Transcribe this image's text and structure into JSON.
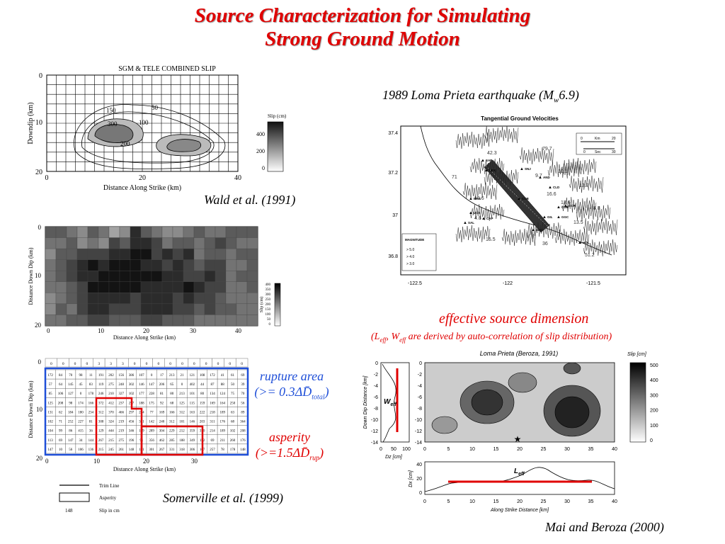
{
  "title_line1": "Source Characterization for Simulating",
  "title_line2": "Strong Ground Motion",
  "fig1": {
    "title": "SGM & TELE COMBINED SLIP",
    "ylabel": "Downdip (km)",
    "xlabel": "Distance Along Strike (km)",
    "xticks": [
      "0",
      "20",
      "40"
    ],
    "yticks": [
      "0",
      "10",
      "20"
    ],
    "contours": [
      "50",
      "150",
      "300",
      "100",
      "200"
    ],
    "colorbar_title": "Slip (cm)",
    "colorbar_ticks": [
      "400",
      "200",
      "0"
    ],
    "citation": "Wald et al. (1991)"
  },
  "fig2": {
    "ylabel": "Distance Down Dip (km)",
    "xlabel": "Distance Along Strike (km)",
    "xticks": [
      "0",
      "10",
      "20",
      "30",
      "40"
    ],
    "yticks": [
      "0",
      "10",
      "20"
    ],
    "colorbar_title": "Slip (cm)",
    "colorbar_ticks": [
      "400",
      "350",
      "300",
      "250",
      "200",
      "150",
      "100",
      "50",
      "0"
    ]
  },
  "fig3": {
    "ylabel": "Distance Down Dip (km)",
    "xlabel": "Distance Along Strike (km)",
    "xticks": [
      "0",
      "10",
      "20",
      "30"
    ],
    "yticks": [
      "0",
      "10",
      "20"
    ],
    "first_row": [
      "0",
      "0",
      "0",
      "0",
      "3",
      "3",
      "3",
      "0",
      "0",
      "0",
      "0",
      "0",
      "0",
      "0",
      "0",
      "0",
      "0"
    ],
    "rows": [
      [
        "172",
        "84",
        "70",
        "98",
        "11",
        "191",
        "202",
        "156",
        "386",
        "107",
        "0",
        "17",
        "213",
        "21",
        "121",
        "108",
        "172",
        "41",
        "61",
        "69"
      ],
      [
        "57",
        "64",
        "145",
        "45",
        "83",
        "119",
        "275",
        "248",
        "302",
        "146",
        "147",
        "206",
        "65",
        "0",
        "402",
        "44",
        "87",
        "88",
        "50",
        "39"
      ],
      [
        "85",
        "106",
        "127",
        "0",
        "178",
        "246",
        "210",
        "327",
        "102",
        "177",
        "228",
        "81",
        "80",
        "213",
        "101",
        "80",
        "134",
        "124",
        "75",
        "70"
      ],
      [
        "125",
        "208",
        "98",
        "174",
        "166",
        "372",
        "412",
        "237",
        "297",
        "188",
        "175",
        "92",
        "68",
        "125",
        "115",
        "159",
        "169",
        "164",
        "250",
        "56"
      ],
      [
        "131",
        "62",
        "184",
        "180",
        "234",
        "312",
        "370",
        "466",
        "297",
        "234",
        "77",
        "169",
        "166",
        "312",
        "163",
        "222",
        "218",
        "189",
        "63",
        "89"
      ],
      [
        "102",
        "71",
        "252",
        "227",
        "81",
        "308",
        "324",
        "219",
        "456",
        "321",
        "142",
        "240",
        "312",
        "101",
        "146",
        "203",
        "311",
        "176",
        "68",
        "364"
      ],
      [
        "104",
        "99",
        "86",
        "415",
        "36",
        "129",
        "444",
        "219",
        "346",
        "169",
        "289",
        "304",
        "229",
        "212",
        "359",
        "370",
        "214",
        "189",
        "102",
        "208"
      ],
      [
        "113",
        "69",
        "147",
        "34",
        "144",
        "267",
        "215",
        "275",
        "196",
        "91",
        "356",
        "462",
        "285",
        "188",
        "349",
        "152",
        "69",
        "211",
        "260",
        "176"
      ],
      [
        "147",
        "10",
        "56",
        "106",
        "136",
        "215",
        "245",
        "261",
        "148",
        "121",
        "301",
        "267",
        "331",
        "318",
        "306",
        "167",
        "257",
        "78",
        "178",
        "148"
      ]
    ],
    "legend_trim": "Trim Line",
    "legend_asperity": "Asperity",
    "legend_slip_value": "148",
    "legend_slip": "Slip in cm",
    "citation": "Somerville et al. (1999)"
  },
  "labels": {
    "rupture_area": "rupture area",
    "rupture_formula_pre": "(>= 0.3",
    "rupture_formula_sym": "ΔD̄",
    "rupture_formula_sub": "total",
    "rupture_formula_post": ")",
    "asperity": "asperity",
    "asperity_formula_pre": "(>=1.5",
    "asperity_formula_sym": "ΔD̄",
    "asperity_formula_sub": "rup",
    "asperity_formula_post": ")"
  },
  "fig4": {
    "caption_pre": "1989 Loma Prieta earthquake (M",
    "caption_sub": "w",
    "caption_post": "6.9)",
    "title": "Tangential Ground Velocities",
    "yticks": [
      "37.4",
      "37.2",
      "37",
      "36.8"
    ],
    "xticks": [
      "-122.5",
      "-122",
      "-121.5"
    ],
    "stations": [
      "SAR",
      "LEX",
      "BRN",
      "UCS",
      "SAL",
      "CAP",
      "WAT",
      "SNJ",
      "AND",
      "CLD",
      "COB",
      "COR",
      "GGC",
      "HOL",
      "CCB",
      "GIL"
    ],
    "amplitudes": [
      "42.3",
      "79.7",
      "9.7",
      "10.1",
      "16.6",
      "13.7",
      "19.6",
      "13.6",
      "8.8",
      "4.8",
      "13.5",
      "15.5",
      "51.2",
      "28",
      "71",
      "36"
    ],
    "scale_km": "Km",
    "scale_sec": "Sec",
    "scale_ticks": [
      "0",
      "20",
      "0",
      "30"
    ],
    "magnitude_title": "MAGNITUDE",
    "magnitude_items": [
      "> 5.0",
      "> 4.0",
      "> 3.0"
    ]
  },
  "effective": {
    "title": "effective source dimension",
    "note_pre": "(L",
    "note_sub1": "eff",
    "note_mid": ", W",
    "note_sub2": "eff",
    "note_post": " are derived by auto-correlation of slip distribution)"
  },
  "fig5": {
    "title": "Loma Prieta (Beroza, 1991)",
    "colorbar_title": "Slip [cm]",
    "colorbar_ticks": [
      "500",
      "400",
      "300",
      "200",
      "100",
      "0"
    ],
    "ylabel": "Down Dip Distance [km]",
    "yticks": [
      "0",
      "-2",
      "-4",
      "-6",
      "-8",
      "-10",
      "-12",
      "-14"
    ],
    "xticks": [
      "0",
      "5",
      "10",
      "15",
      "20",
      "25",
      "30",
      "35",
      "40"
    ],
    "dz_label": "Dz [cm]",
    "dz_ticks": [
      "0",
      "50",
      "100"
    ],
    "weff": "W",
    "weff_sub": "eff",
    "leff": "L",
    "leff_sub": "eff",
    "dx_label": "Dx [cm]",
    "dx_yticks": [
      "40",
      "20",
      "0"
    ],
    "xlabel": "Along Strike Distance [km]",
    "citation": "Mai and Beroza (2000)"
  }
}
